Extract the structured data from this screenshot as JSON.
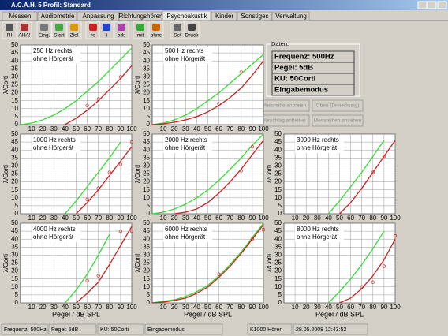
{
  "window": {
    "title": "A.C.A.H. 5 Profil: Standard"
  },
  "tabs": [
    "Messen",
    "Audiometrie",
    "Anpassung",
    "Richtungshören",
    "Psychoakustik",
    "Kinder",
    "Sonstiges",
    "Verwaltung"
  ],
  "toolbar": [
    "RI",
    "AHA!",
    "Eing.",
    "Start",
    "Ziel",
    "re",
    "li",
    "bds",
    "mit",
    "ohne",
    "Set",
    "Druck"
  ],
  "panel": {
    "title": "Daten:",
    "rows": [
      "Frequenz: 500Hz",
      "Pegel:  5dB",
      "KU:  50Corti",
      "Eingabemodus"
    ]
  },
  "buttons": [
    "Messreihe anbieten",
    "Oben (Dreieckung)",
    "Vorschlag anbieten",
    "Messreihen ansehen"
  ],
  "status": [
    "Frequenz: 500Hz",
    "Pegel:  5dB",
    "KU:  50Corti",
    "Eingabemodus",
    "K1000 Hörer",
    "28.05.2008 12:43:52"
  ],
  "chart_data": [
    {
      "type": "line",
      "title": "250 Hz rechts",
      "subtitle": "ohne Hörgerät",
      "ylabel": "λ/Corti",
      "x": [
        0,
        10,
        20,
        30,
        40,
        50,
        60,
        70,
        80,
        90,
        100
      ],
      "xlim": [
        0,
        100
      ],
      "xticks": [
        10,
        20,
        30,
        40,
        50,
        60,
        70,
        80,
        90,
        100
      ],
      "ylim": [
        0,
        50
      ],
      "yticks": [
        0,
        5,
        10,
        15,
        20,
        25,
        30,
        35,
        40,
        45,
        50
      ],
      "grid": true,
      "series": [
        {
          "color": "#33dd33",
          "values": [
            0,
            1,
            3,
            6,
            10,
            15,
            21,
            27,
            34,
            41,
            48
          ]
        },
        {
          "color": "#cc2020",
          "values": [
            null,
            null,
            null,
            null,
            0,
            4,
            9,
            15,
            22,
            29,
            37
          ]
        }
      ],
      "points": {
        "x": [
          60,
          70,
          90
        ],
        "y": [
          12,
          16,
          30
        ]
      }
    },
    {
      "type": "line",
      "title": "500 Hz rechts",
      "subtitle": "ohne Hörgerät",
      "ylabel": "λ/Corti",
      "x": [
        0,
        10,
        20,
        30,
        40,
        50,
        60,
        70,
        80,
        90,
        100
      ],
      "xlim": [
        0,
        100
      ],
      "xticks": [
        10,
        20,
        30,
        40,
        50,
        60,
        70,
        80,
        90,
        100
      ],
      "ylim": [
        0,
        50
      ],
      "yticks": [
        0,
        5,
        10,
        15,
        20,
        25,
        30,
        35,
        40,
        45,
        50
      ],
      "grid": true,
      "series": [
        {
          "color": "#33dd33",
          "values": [
            0,
            1,
            3,
            6,
            10,
            15,
            20,
            26,
            32,
            38,
            44
          ]
        },
        {
          "color": "#cc2020",
          "values": [
            0,
            0.5,
            1.5,
            3,
            5,
            8,
            12,
            17,
            23,
            31,
            40
          ]
        }
      ],
      "points": {
        "x": [
          60,
          80
        ],
        "y": [
          13,
          33
        ]
      }
    },
    {
      "type": "line",
      "title": "1000 Hz rechts",
      "subtitle": "ohne Hörgerät",
      "ylabel": "λ/Corti",
      "x": [
        0,
        10,
        20,
        30,
        40,
        50,
        60,
        70,
        80,
        90,
        100
      ],
      "xlim": [
        0,
        100
      ],
      "xticks": [
        10,
        20,
        30,
        40,
        50,
        60,
        70,
        80,
        90,
        100
      ],
      "ylim": [
        0,
        50
      ],
      "yticks": [
        0,
        5,
        10,
        15,
        20,
        25,
        30,
        35,
        40,
        45,
        50
      ],
      "grid": true,
      "series": [
        {
          "color": "#33dd33",
          "values": [
            null,
            null,
            null,
            null,
            0,
            8,
            17,
            26,
            35,
            45,
            null
          ]
        },
        {
          "color": "#cc2020",
          "values": [
            null,
            null,
            null,
            null,
            null,
            0,
            7,
            15,
            24,
            33,
            42
          ]
        }
      ],
      "points": {
        "x": [
          60,
          70,
          80,
          90,
          100
        ],
        "y": [
          9,
          16,
          26,
          31,
          45
        ]
      }
    },
    {
      "type": "line",
      "title": "2000 Hz rechts",
      "subtitle": "ohne Hörgerät",
      "ylabel": "λ/Corti",
      "x": [
        0,
        10,
        20,
        30,
        40,
        50,
        60,
        70,
        80,
        90,
        100
      ],
      "xlim": [
        0,
        100
      ],
      "xticks": [
        10,
        20,
        30,
        40,
        50,
        60,
        70,
        80,
        90,
        100
      ],
      "ylim": [
        0,
        50
      ],
      "yticks": [
        0,
        5,
        10,
        15,
        20,
        25,
        30,
        35,
        40,
        45,
        50
      ],
      "grid": true,
      "series": [
        {
          "color": "#33dd33",
          "values": [
            0,
            1,
            3,
            6,
            10,
            15,
            21,
            28,
            35,
            43,
            50
          ]
        },
        {
          "color": "#cc2020",
          "values": [
            null,
            null,
            0,
            1,
            3,
            7,
            13,
            20,
            28,
            37,
            46
          ]
        }
      ],
      "points": {
        "x": [
          80,
          90
        ],
        "y": [
          27,
          42
        ]
      }
    },
    {
      "type": "line",
      "title": "3000 Hz rechts",
      "subtitle": "ohne Hörgerät",
      "ylabel": "λ/Corti",
      "x": [
        0,
        10,
        20,
        30,
        40,
        50,
        60,
        70,
        80,
        90,
        100
      ],
      "xlim": [
        0,
        100
      ],
      "xticks": [
        10,
        20,
        30,
        40,
        50,
        60,
        70,
        80,
        90,
        100
      ],
      "ylim": [
        0,
        50
      ],
      "yticks": [
        0,
        5,
        10,
        15,
        20,
        25,
        30,
        35,
        40,
        45,
        50
      ],
      "grid": true,
      "series": [
        {
          "color": "#33dd33",
          "values": [
            null,
            null,
            null,
            null,
            0,
            8,
            17,
            26,
            36,
            46,
            null
          ]
        },
        {
          "color": "#cc2020",
          "values": [
            null,
            null,
            null,
            null,
            null,
            0,
            7,
            16,
            26,
            36,
            46
          ]
        }
      ],
      "points": {
        "x": [
          80,
          90
        ],
        "y": [
          26,
          36
        ]
      }
    },
    {
      "type": "line",
      "title": "4000 Hz rechts",
      "subtitle": "ohne Hörgerät",
      "ylabel": "λ/Corti",
      "xlabel": "Pegel / dB SPL",
      "x": [
        0,
        10,
        20,
        30,
        40,
        50,
        60,
        70,
        80,
        90,
        100
      ],
      "xlim": [
        0,
        100
      ],
      "xticks": [
        10,
        20,
        30,
        40,
        50,
        60,
        70,
        80,
        90,
        100
      ],
      "ylim": [
        0,
        50
      ],
      "yticks": [
        0,
        5,
        10,
        15,
        20,
        25,
        30,
        35,
        40,
        45,
        50
      ],
      "grid": true,
      "series": [
        {
          "color": "#33dd33",
          "values": [
            null,
            null,
            null,
            null,
            0,
            8,
            18,
            30,
            43,
            null,
            null
          ]
        },
        {
          "color": "#cc2020",
          "values": [
            null,
            null,
            null,
            null,
            null,
            0,
            6,
            13,
            24,
            36,
            48
          ]
        }
      ],
      "points": {
        "x": [
          60,
          70,
          90,
          100
        ],
        "y": [
          14,
          17,
          45,
          45
        ]
      }
    },
    {
      "type": "line",
      "title": "6000 Hz rechts",
      "subtitle": "ohne Hörgerät",
      "ylabel": "λ/Corti",
      "xlabel": "Pegel / dB SPL",
      "x": [
        0,
        10,
        20,
        30,
        40,
        50,
        60,
        70,
        80,
        90,
        100
      ],
      "xlim": [
        0,
        100
      ],
      "xticks": [
        10,
        20,
        30,
        40,
        50,
        60,
        70,
        80,
        90,
        100
      ],
      "ylim": [
        0,
        50
      ],
      "yticks": [
        0,
        5,
        10,
        15,
        20,
        25,
        30,
        35,
        40,
        45,
        50
      ],
      "grid": true,
      "series": [
        {
          "color": "#33dd33",
          "values": [
            0,
            1,
            2,
            4,
            7,
            11,
            17,
            24,
            32,
            41,
            50
          ]
        },
        {
          "color": "#cc2020",
          "values": [
            0,
            0.5,
            1.5,
            3,
            6,
            10,
            16,
            23,
            31,
            40,
            49
          ]
        }
      ],
      "points": {
        "x": [
          60,
          90,
          100
        ],
        "y": [
          18,
          40,
          46
        ]
      }
    },
    {
      "type": "line",
      "title": "8000 Hz rechts",
      "subtitle": "ohne Hörgerät",
      "ylabel": "λ/Corti",
      "xlabel": "Pegel / dB SPL",
      "x": [
        0,
        10,
        20,
        30,
        40,
        50,
        60,
        70,
        80,
        90,
        100
      ],
      "xlim": [
        0,
        100
      ],
      "xticks": [
        10,
        20,
        30,
        40,
        50,
        60,
        70,
        80,
        90,
        100
      ],
      "ylim": [
        0,
        50
      ],
      "yticks": [
        0,
        5,
        10,
        15,
        20,
        25,
        30,
        35,
        40,
        45,
        50
      ],
      "grid": true,
      "series": [
        {
          "color": "#33dd33",
          "values": [
            null,
            null,
            null,
            null,
            0,
            7,
            15,
            24,
            34,
            45,
            null
          ]
        },
        {
          "color": "#cc2020",
          "values": [
            null,
            null,
            null,
            null,
            null,
            0,
            3,
            9,
            17,
            27,
            40
          ]
        }
      ],
      "points": {
        "x": [
          70,
          80,
          90,
          100
        ],
        "y": [
          10,
          13,
          23,
          42
        ]
      }
    }
  ]
}
